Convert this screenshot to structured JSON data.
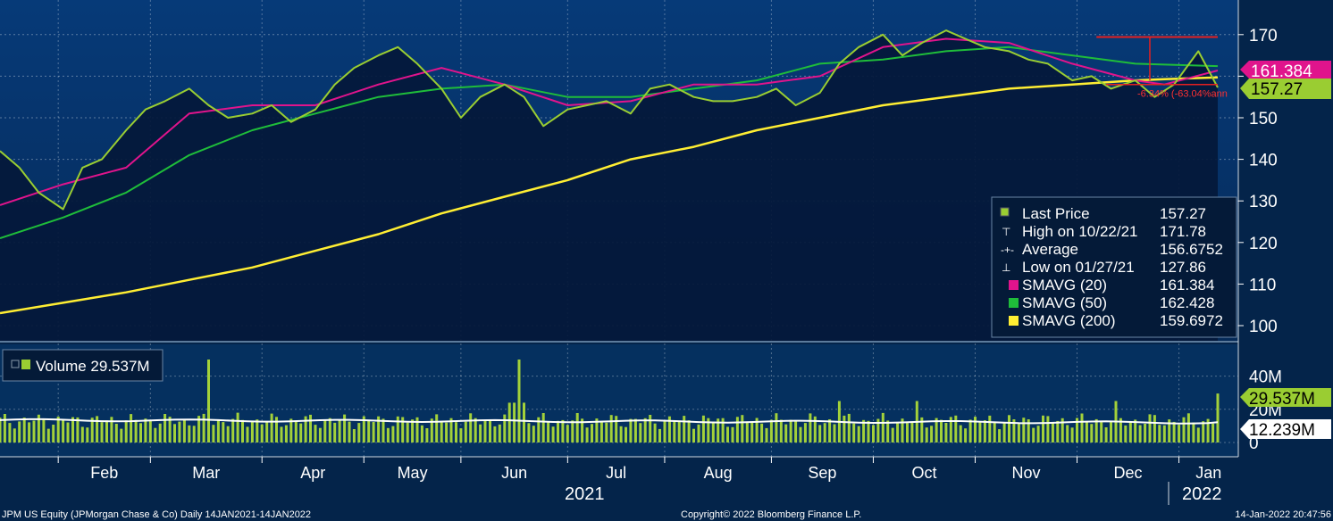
{
  "footer": {
    "left": "JPM US Equity (JPMorgan Chase & Co)  Daily 14JAN2021-14JAN2022",
    "center": "Copyright© 2022 Bloomberg Finance L.P.",
    "right": "14-Jan-2022 20:47:56"
  },
  "colors": {
    "background": "#04244a",
    "price": "#9acd32",
    "sma20": "#e0148c",
    "sma50": "#1fbd3a",
    "sma200": "#ffee33",
    "volume": "#a3d13a",
    "volume_avg": "#ffffff",
    "high_line": "#e62020"
  },
  "legend": {
    "last_price_label": "Last Price",
    "last_price_value": "157.27",
    "high_label": "High on 10/22/21",
    "high_value": "171.78",
    "average_label": "Average",
    "average_value": "156.6752",
    "low_label": "Low on 01/27/21",
    "low_value": "127.86",
    "sma20_label": "SMAVG (20)",
    "sma20_value": "161.384",
    "sma50_label": "SMAVG (50)",
    "sma50_value": "162.428",
    "sma200_label": "SMAVG (200)",
    "sma200_value": "159.6972"
  },
  "volume_legend": {
    "label": "Volume 29.537M"
  },
  "tags": {
    "sma20": "161.384",
    "last": "157.27",
    "volume": "29.537M",
    "volume_avg": "12.239M"
  },
  "annotation": "-6.34% (-63.04%ann",
  "chart_data": [
    {
      "type": "line",
      "title": "",
      "ylim": [
        95,
        178
      ],
      "y_ticks": [
        100,
        110,
        120,
        130,
        140,
        150,
        160,
        170
      ],
      "x_months": [
        "Feb",
        "Mar",
        "Apr",
        "May",
        "Jun",
        "Jul",
        "Aug",
        "Sep",
        "Oct",
        "Nov",
        "Dec",
        "Jan"
      ],
      "x_year_labels": [
        "2021",
        "2022"
      ],
      "series": [
        {
          "name": "Last Price",
          "x": [
            0,
            4,
            8,
            13,
            17,
            21,
            26,
            30,
            34,
            39,
            43,
            47,
            52,
            56,
            60,
            65,
            69,
            73,
            78,
            82,
            86,
            91,
            95,
            99,
            104,
            108,
            112,
            117,
            121,
            125,
            130,
            134,
            138,
            143,
            147,
            151,
            156,
            160,
            164,
            169,
            173,
            177,
            182,
            186,
            190,
            195,
            199,
            203,
            208,
            212,
            216,
            221,
            225,
            229,
            234,
            238,
            242,
            247,
            251
          ],
          "values": [
            142,
            138,
            132,
            128,
            138,
            140,
            147,
            152,
            154,
            157,
            153,
            150,
            151,
            153,
            149,
            152,
            158,
            162,
            165,
            167,
            163,
            157,
            150,
            155,
            158,
            155,
            148,
            152,
            153,
            154,
            151,
            157,
            158,
            155,
            154,
            154,
            155,
            157,
            153,
            156,
            163,
            167,
            170,
            165,
            168,
            171,
            169,
            167,
            166,
            164,
            163,
            159,
            160,
            157,
            159,
            155,
            158,
            166,
            157.27
          ]
        },
        {
          "name": "SMAVG (20)",
          "x": [
            0,
            13,
            26,
            39,
            52,
            65,
            78,
            91,
            104,
            117,
            130,
            143,
            156,
            169,
            182,
            195,
            208,
            221,
            234,
            240,
            251
          ],
          "values": [
            129,
            134,
            138,
            151,
            153,
            153,
            158,
            162,
            158,
            153,
            154,
            158,
            158,
            160,
            167,
            169,
            168,
            163,
            159,
            158,
            161.384
          ]
        },
        {
          "name": "SMAVG (50)",
          "x": [
            0,
            13,
            26,
            39,
            52,
            65,
            78,
            91,
            104,
            117,
            130,
            143,
            156,
            169,
            182,
            195,
            208,
            221,
            234,
            240,
            251
          ],
          "values": [
            121,
            126,
            132,
            141,
            147,
            151,
            155,
            157,
            158,
            155,
            155,
            157,
            159,
            163,
            164,
            166,
            167,
            165,
            163,
            162.8,
            162.428
          ]
        },
        {
          "name": "SMAVG (200)",
          "x": [
            0,
            13,
            26,
            39,
            52,
            65,
            78,
            91,
            104,
            117,
            130,
            143,
            156,
            169,
            182,
            195,
            208,
            221,
            234,
            240,
            251
          ],
          "values": [
            103,
            105.5,
            108,
            111,
            114,
            118,
            122,
            127,
            131,
            135,
            140,
            143,
            147,
            150,
            153,
            155,
            157,
            158,
            159,
            159.3,
            159.6972
          ]
        }
      ],
      "high": {
        "label": "High on 10/22/21",
        "value": 171.78
      },
      "low": {
        "label": "Low on 01/27/21",
        "value": 127.86
      },
      "last": 157.27
    },
    {
      "type": "bar",
      "title": "",
      "ylim": [
        0,
        55
      ],
      "y_ticks": [
        0,
        20,
        40
      ],
      "y_tick_labels": [
        "0",
        "20M",
        "40M"
      ],
      "series": [
        {
          "name": "Volume",
          "unit": "M",
          "last": 29.537
        },
        {
          "name": "Volume average",
          "unit": "M",
          "last": 12.239
        }
      ]
    }
  ]
}
